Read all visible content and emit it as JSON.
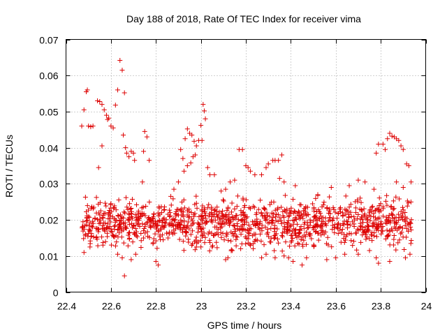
{
  "chart_data": {
    "type": "scatter",
    "title": "Day 188 of 2018, Rate Of TEC Index for receiver vima",
    "xlabel": "GPS time / hours",
    "ylabel": "ROTI / TECUs",
    "xlim": [
      22.4,
      24
    ],
    "ylim": [
      0,
      0.07
    ],
    "xticks": [
      22.4,
      22.6,
      22.8,
      23,
      23.2,
      23.4,
      23.6,
      23.8,
      24
    ],
    "xtick_labels": [
      "22.4",
      "22.6",
      "22.8",
      "23",
      "23.2",
      "23.4",
      "23.6",
      "23.8",
      "24"
    ],
    "yticks": [
      0,
      0.01,
      0.02,
      0.03,
      0.04,
      0.05,
      0.06,
      0.07
    ],
    "ytick_labels": [
      "0",
      "0.01",
      "0.02",
      "0.03",
      "0.04",
      "0.05",
      "0.06",
      "0.07"
    ],
    "grid": true,
    "marker": "+",
    "color": "#dd0000",
    "series": [
      {
        "name": "ROTI",
        "points": [
          [
            22.47,
            0.046
          ],
          [
            22.48,
            0.0505
          ],
          [
            22.49,
            0.0555
          ],
          [
            22.495,
            0.056
          ],
          [
            22.5,
            0.046
          ],
          [
            22.51,
            0.0458
          ],
          [
            22.52,
            0.046
          ],
          [
            22.54,
            0.053
          ],
          [
            22.55,
            0.0528
          ],
          [
            22.56,
            0.052
          ],
          [
            22.57,
            0.0505
          ],
          [
            22.58,
            0.049
          ],
          [
            22.585,
            0.0478
          ],
          [
            22.59,
            0.0482
          ],
          [
            22.6,
            0.046
          ],
          [
            22.61,
            0.0455
          ],
          [
            22.62,
            0.0518
          ],
          [
            22.63,
            0.056
          ],
          [
            22.64,
            0.0642
          ],
          [
            22.65,
            0.0615
          ],
          [
            22.66,
            0.0552
          ],
          [
            22.655,
            0.0435
          ],
          [
            22.665,
            0.04
          ],
          [
            22.545,
            0.0345
          ],
          [
            22.56,
            0.0405
          ],
          [
            22.67,
            0.0385
          ],
          [
            22.68,
            0.0375
          ],
          [
            22.69,
            0.039
          ],
          [
            22.7,
            0.0385
          ],
          [
            22.705,
            0.0365
          ],
          [
            22.66,
            0.0045
          ],
          [
            22.75,
            0.0445
          ],
          [
            22.76,
            0.043
          ],
          [
            22.745,
            0.039
          ],
          [
            22.74,
            0.0305
          ],
          [
            22.77,
            0.0365
          ],
          [
            22.93,
            0.0425
          ],
          [
            22.94,
            0.0452
          ],
          [
            22.95,
            0.044
          ],
          [
            22.96,
            0.0435
          ],
          [
            22.97,
            0.0418
          ],
          [
            22.98,
            0.0405
          ],
          [
            22.99,
            0.042
          ],
          [
            23.0,
            0.0462
          ],
          [
            23.01,
            0.052
          ],
          [
            23.015,
            0.0502
          ],
          [
            23.02,
            0.048
          ],
          [
            23.005,
            0.042
          ],
          [
            22.91,
            0.0395
          ],
          [
            22.92,
            0.037
          ],
          [
            22.925,
            0.0335
          ],
          [
            22.94,
            0.035
          ],
          [
            22.955,
            0.0358
          ],
          [
            22.965,
            0.0375
          ],
          [
            22.975,
            0.038
          ],
          [
            23.03,
            0.0345
          ],
          [
            23.04,
            0.0325
          ],
          [
            23.06,
            0.0325
          ],
          [
            22.9,
            0.0305
          ],
          [
            22.88,
            0.0285
          ],
          [
            23.17,
            0.0395
          ],
          [
            23.185,
            0.0395
          ],
          [
            23.2,
            0.035
          ],
          [
            23.21,
            0.0345
          ],
          [
            23.22,
            0.0335
          ],
          [
            23.24,
            0.0325
          ],
          [
            23.27,
            0.0325
          ],
          [
            23.29,
            0.0345
          ],
          [
            23.3,
            0.0355
          ],
          [
            23.32,
            0.0365
          ],
          [
            23.33,
            0.0365
          ],
          [
            23.345,
            0.0365
          ],
          [
            23.36,
            0.038
          ],
          [
            23.35,
            0.0315
          ],
          [
            23.37,
            0.0305
          ],
          [
            23.15,
            0.031
          ],
          [
            23.13,
            0.0305
          ],
          [
            23.11,
            0.0285
          ],
          [
            23.09,
            0.028
          ],
          [
            23.42,
            0.0295
          ],
          [
            23.52,
            0.027
          ],
          [
            23.58,
            0.029
          ],
          [
            23.66,
            0.0295
          ],
          [
            23.7,
            0.031
          ],
          [
            23.73,
            0.0305
          ],
          [
            23.77,
            0.0285
          ],
          [
            23.79,
            0.041
          ],
          [
            23.81,
            0.041
          ],
          [
            23.83,
            0.0425
          ],
          [
            23.84,
            0.044
          ],
          [
            23.85,
            0.0432
          ],
          [
            23.86,
            0.043
          ],
          [
            23.87,
            0.0425
          ],
          [
            23.88,
            0.042
          ],
          [
            23.89,
            0.0405
          ],
          [
            23.9,
            0.0395
          ],
          [
            23.915,
            0.0355
          ],
          [
            23.925,
            0.035
          ],
          [
            23.935,
            0.0305
          ],
          [
            23.78,
            0.0385
          ],
          [
            23.82,
            0.0395
          ],
          [
            23.87,
            0.0305
          ],
          [
            23.9,
            0.029
          ],
          [
            23.84,
            0.0085
          ],
          [
            23.79,
            0.008
          ],
          [
            23.78,
            0.0095
          ],
          [
            23.91,
            0.0095
          ],
          [
            23.93,
            0.0105
          ],
          [
            23.47,
            0.0095
          ],
          [
            23.45,
            0.0075
          ],
          [
            23.41,
            0.0085
          ],
          [
            23.39,
            0.0095
          ],
          [
            23.37,
            0.01
          ],
          [
            23.33,
            0.0095
          ],
          [
            23.29,
            0.0105
          ],
          [
            23.27,
            0.0095
          ],
          [
            23.12,
            0.0095
          ],
          [
            23.11,
            0.009
          ],
          [
            23.14,
            0.0115
          ],
          [
            22.81,
            0.0075
          ],
          [
            22.8,
            0.0085
          ],
          [
            22.65,
            0.0095
          ],
          [
            22.63,
            0.0105
          ],
          [
            22.71,
            0.0105
          ],
          [
            22.69,
            0.009
          ],
          [
            22.98,
            0.0125
          ],
          [
            23.0,
            0.0125
          ],
          [
            23.05,
            0.0125
          ],
          [
            23.56,
            0.009
          ],
          [
            23.6,
            0.0095
          ],
          [
            23.64,
            0.0105
          ],
          [
            23.7,
            0.0105
          ],
          [
            23.75,
            0.0115
          ]
        ],
        "band": {
          "x_range": [
            22.47,
            23.94
          ],
          "low": 0.0095,
          "high": 0.0285,
          "count": 1180
        }
      }
    ]
  }
}
